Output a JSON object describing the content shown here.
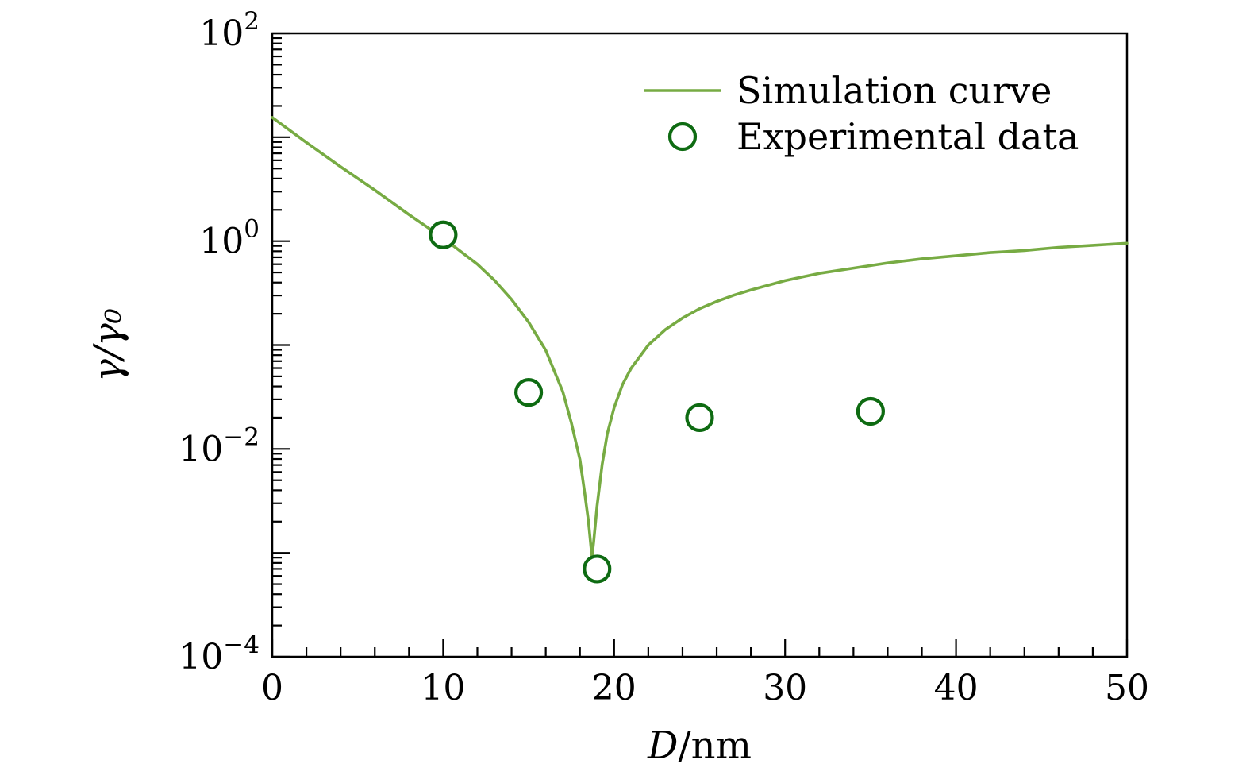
{
  "figure": {
    "background": "#ffffff",
    "frame_color": "#000000"
  },
  "chart_data": {
    "type": "line",
    "title": "",
    "xlabel_italic": "D",
    "xlabel_rest": "/nm",
    "ylabel": "γ/γ₀",
    "x_range": [
      0,
      50
    ],
    "y_scale": "log",
    "y_range_exponents": [
      -4,
      2
    ],
    "x_major_ticks": [
      0,
      10,
      20,
      30,
      40,
      50
    ],
    "x_minor_step": 2,
    "y_labeled_exponents": [
      2,
      0,
      -2,
      -4
    ],
    "grid": false,
    "legend_position": "top-right",
    "series": [
      {
        "name": "Simulation curve",
        "type": "line",
        "color": "#77ab43",
        "x": [
          0,
          2,
          4,
          6,
          8,
          10,
          12,
          13,
          14,
          15,
          16,
          17,
          17.5,
          18,
          18.3,
          18.5,
          18.65,
          18.7,
          18.8,
          19,
          19.3,
          19.6,
          20,
          20.5,
          21,
          22,
          23,
          24,
          25,
          26,
          27,
          28,
          30,
          32,
          34,
          36,
          38,
          40,
          42,
          44,
          46,
          48,
          50
        ],
        "y": [
          15.5,
          8.9,
          5.2,
          3.1,
          1.8,
          1.07,
          0.6,
          0.42,
          0.275,
          0.166,
          0.089,
          0.0355,
          0.0178,
          0.0079,
          0.00355,
          0.002,
          0.00112,
          0.0009,
          0.00126,
          0.0028,
          0.0071,
          0.014,
          0.025,
          0.042,
          0.06,
          0.1,
          0.141,
          0.182,
          0.224,
          0.263,
          0.302,
          0.339,
          0.417,
          0.49,
          0.55,
          0.617,
          0.676,
          0.724,
          0.776,
          0.813,
          0.871,
          0.912,
          0.955
        ]
      },
      {
        "name": "Experimental data",
        "type": "scatter",
        "marker": "open-circle",
        "color": "#0e6b12",
        "x": [
          10,
          15,
          19,
          25,
          35
        ],
        "y": [
          1.15,
          0.035,
          0.0007,
          0.02,
          0.023
        ]
      }
    ]
  }
}
